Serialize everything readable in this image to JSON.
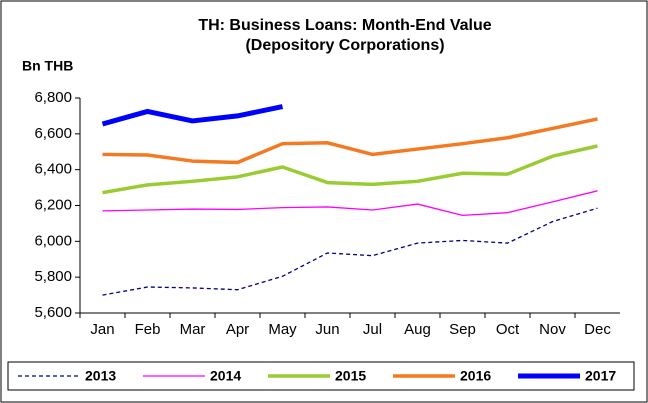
{
  "chart_data": {
    "type": "line",
    "title": "TH: Business Loans: Month-End Value",
    "subtitle": "(Depository Corporations)",
    "y_label": "Bn THB",
    "categories": [
      "Jan",
      "Feb",
      "Mar",
      "Apr",
      "May",
      "Jun",
      "Jul",
      "Aug",
      "Sep",
      "Oct",
      "Nov",
      "Dec"
    ],
    "ylim": [
      5600,
      6800
    ],
    "yticks": [
      {
        "value": 5600,
        "label": "5,600"
      },
      {
        "value": 5800,
        "label": "5,800"
      },
      {
        "value": 6000,
        "label": "6,000"
      },
      {
        "value": 6200,
        "label": "6,200"
      },
      {
        "value": 6400,
        "label": "6,400"
      },
      {
        "value": 6600,
        "label": "6,600"
      },
      {
        "value": 6800,
        "label": "6,800"
      }
    ],
    "grid": false,
    "legend": "bottom",
    "series": [
      {
        "name": "2013",
        "color": "#000080",
        "dash": true,
        "width": 1.3,
        "values": [
          5700,
          5745,
          5740,
          5730,
          5805,
          5935,
          5920,
          5990,
          6005,
          5990,
          6110,
          6185
        ]
      },
      {
        "name": "2014",
        "color": "#ff00ff",
        "width": 1.3,
        "values": [
          6170,
          6175,
          6180,
          6178,
          6188,
          6192,
          6175,
          6208,
          6145,
          6160,
          6220,
          6282
        ]
      },
      {
        "name": "2015",
        "color": "#99cc33",
        "width": 3.5,
        "values": [
          6272,
          6315,
          6335,
          6360,
          6415,
          6328,
          6318,
          6335,
          6380,
          6375,
          6475,
          6532
        ]
      },
      {
        "name": "2016",
        "color": "#f47920",
        "width": 3.5,
        "values": [
          6485,
          6482,
          6448,
          6440,
          6545,
          6550,
          6485,
          6515,
          6545,
          6578,
          6630,
          6683
        ]
      },
      {
        "name": "2017",
        "color": "#0000ff",
        "width": 5,
        "values": [
          6655,
          6725,
          6672,
          6700,
          6752,
          null,
          null,
          null,
          null,
          null,
          null,
          null
        ]
      }
    ]
  }
}
